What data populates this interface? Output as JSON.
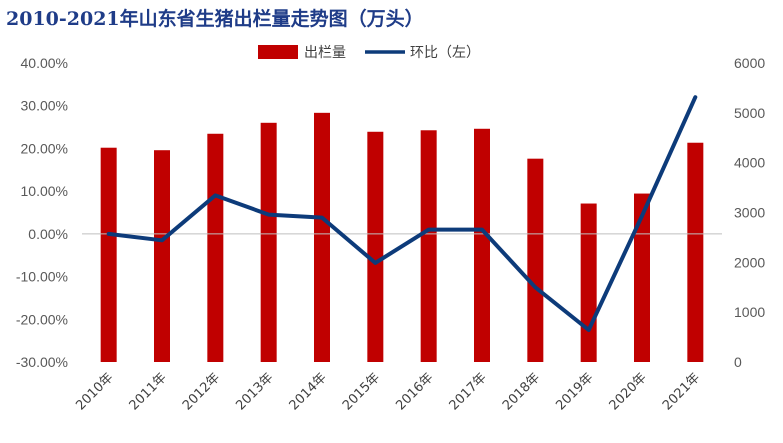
{
  "chart_data": {
    "type": "bar",
    "title": "2010-2021年山东省生猪出栏量走势图（万头）",
    "categories": [
      "2010年",
      "2011年",
      "2012年",
      "2013年",
      "2014年",
      "2015年",
      "2016年",
      "2017年",
      "2018年",
      "2019年",
      "2020年",
      "2021年"
    ],
    "y_left": {
      "ticks": [
        "40.00%",
        "30.00%",
        "20.00%",
        "10.00%",
        "0.00%",
        "-10.00%",
        "-20.00%",
        "-30.00%"
      ],
      "range": [
        -0.3,
        0.4
      ]
    },
    "y_right": {
      "ticks": [
        "6000",
        "5000",
        "4000",
        "3000",
        "2000",
        "1000",
        "0"
      ],
      "range": [
        0,
        6000
      ]
    },
    "series": [
      {
        "name": "出栏量",
        "kind": "bar",
        "axis": "right",
        "color": "#c00000",
        "values": [
          4300,
          4250,
          4580,
          4800,
          5000,
          4620,
          4650,
          4680,
          4080,
          3180,
          3380,
          4400
        ]
      },
      {
        "name": "环比（左）",
        "kind": "line",
        "axis": "left",
        "color": "#0d3b7a",
        "values": [
          0.0,
          -0.015,
          0.09,
          0.045,
          0.038,
          -0.068,
          0.01,
          0.01,
          -0.125,
          -0.225,
          0.042,
          0.32
        ]
      }
    ],
    "grid": false,
    "legend_position": "top-right"
  }
}
